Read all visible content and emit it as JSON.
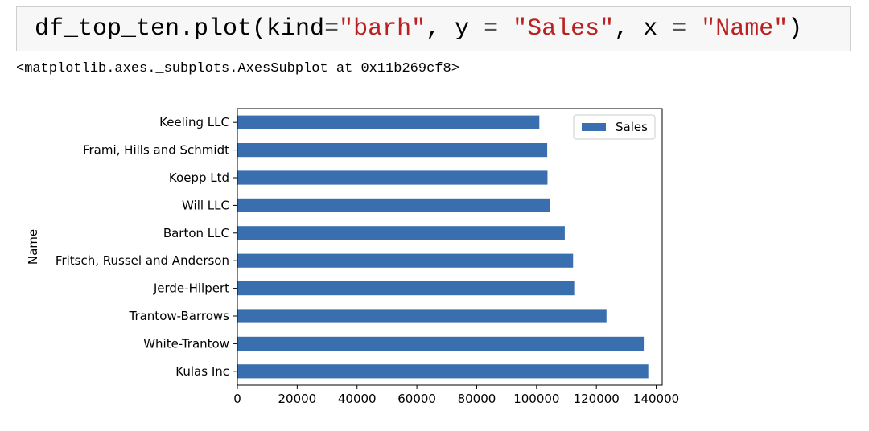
{
  "code_cell": {
    "tokens": [
      {
        "text": "df_top_ten.plot(kind",
        "cls": ""
      },
      {
        "text": "=",
        "cls": "tok-op"
      },
      {
        "text": "\"barh\"",
        "cls": "tok-str"
      },
      {
        "text": ", y ",
        "cls": ""
      },
      {
        "text": "=",
        "cls": "tok-op"
      },
      {
        "text": " ",
        "cls": ""
      },
      {
        "text": "\"Sales\"",
        "cls": "tok-str"
      },
      {
        "text": ", x ",
        "cls": ""
      },
      {
        "text": "=",
        "cls": "tok-op"
      },
      {
        "text": " ",
        "cls": ""
      },
      {
        "text": "\"Name\"",
        "cls": "tok-str"
      },
      {
        "text": ")",
        "cls": ""
      }
    ]
  },
  "output": {
    "text": "<matplotlib.axes._subplots.AxesSubplot at 0x11b269cf8>"
  },
  "chart_data": {
    "type": "bar",
    "orientation": "horizontal",
    "categories": [
      "Kulas Inc",
      "White-Trantow",
      "Trantow-Barrows",
      "Jerde-Hilpert",
      "Fritsch, Russel and Anderson",
      "Barton LLC",
      "Will LLC",
      "Koepp Ltd",
      "Frami, Hills and Schmidt",
      "Keeling LLC"
    ],
    "series": [
      {
        "name": "Sales",
        "color": "#3a6faf",
        "values": [
          137352,
          135841,
          123381,
          112591,
          112214,
          109438,
          104437,
          103660,
          103569,
          100934
        ]
      }
    ],
    "ylabel": "Name",
    "xlabel": "",
    "xlim": [
      0,
      142000
    ],
    "xticks": [
      0,
      20000,
      40000,
      60000,
      80000,
      100000,
      120000,
      140000
    ],
    "grid": false,
    "legend": "top-right"
  }
}
